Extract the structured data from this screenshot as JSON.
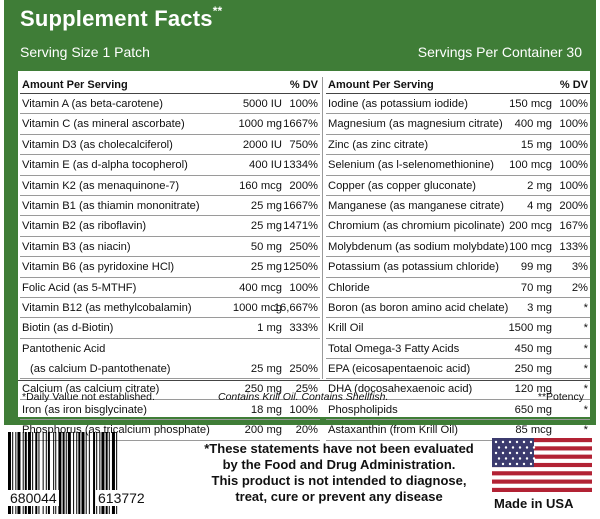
{
  "header": {
    "title": "Supplement Facts",
    "title_mark": "**",
    "serving_size": "Serving Size 1 Patch",
    "servings_per_container": "Servings Per Container 30"
  },
  "table": {
    "col_header_amount": "Amount Per Serving",
    "col_header_dv": "% DV",
    "left": [
      {
        "name": "Vitamin A (as beta-carotene)",
        "amount": "5000 IU",
        "dv": "100%"
      },
      {
        "name": "Vitamin C (as mineral ascorbate)",
        "amount": "1000 mg",
        "dv": "1667%"
      },
      {
        "name": "Vitamin D3 (as cholecalciferol)",
        "amount": "2000 IU",
        "dv": "750%"
      },
      {
        "name": "Vitamin E (as d-alpha tocopherol)",
        "amount": "400 IU",
        "dv": "1334%"
      },
      {
        "name": "Vitamin K2 (as menaquinone-7)",
        "amount": "160 mcg",
        "dv": "200%"
      },
      {
        "name": "Vitamin B1 (as thiamin mononitrate)",
        "amount": "25 mg",
        "dv": "1667%"
      },
      {
        "name": "Vitamin B2 (as riboflavin)",
        "amount": "25 mg",
        "dv": "1471%"
      },
      {
        "name": "Vitamin B3 (as niacin)",
        "amount": "50 mg",
        "dv": "250%"
      },
      {
        "name": "Vitamin B6 (as pyridoxine HCl)",
        "amount": "25 mg",
        "dv": "1250%"
      },
      {
        "name": "Folic Acid (as 5-MTHF)",
        "amount": "400 mcg",
        "dv": "100%"
      },
      {
        "name": "Vitamin B12 (as methylcobalamin)",
        "amount": "1000 mcg",
        "dv": "16,667%"
      },
      {
        "name": "Biotin (as d-Biotin)",
        "amount": "1 mg",
        "dv": "333%"
      },
      {
        "name": "Pantothenic Acid",
        "amount": "",
        "dv": ""
      },
      {
        "name": "(as calcium D-pantothenate)",
        "amount": "25 mg",
        "dv": "250%"
      },
      {
        "name": "Calcium (as calcium citrate)",
        "amount": "250 mg",
        "dv": "25%"
      },
      {
        "name": "Iron (as iron bisglycinate)",
        "amount": "18 mg",
        "dv": "100%"
      },
      {
        "name": "Phosphorus (as tricalcium phosphate)",
        "amount": "200 mg",
        "dv": "20%"
      }
    ],
    "right": [
      {
        "name": "Iodine (as potassium iodide)",
        "amount": "150 mcg",
        "dv": "100%"
      },
      {
        "name": "Magnesium (as magnesium citrate)",
        "amount": "400 mg",
        "dv": "100%"
      },
      {
        "name": "Zinc (as zinc citrate)",
        "amount": "15 mg",
        "dv": "100%"
      },
      {
        "name": "Selenium (as l-selenomethionine)",
        "amount": "100 mcg",
        "dv": "100%"
      },
      {
        "name": "Copper (as copper gluconate)",
        "amount": "2 mg",
        "dv": "100%"
      },
      {
        "name": "Manganese (as manganese citrate)",
        "amount": "4 mg",
        "dv": "200%"
      },
      {
        "name": "Chromium (as chromium picolinate)",
        "amount": "200 mcg",
        "dv": "167%"
      },
      {
        "name": "Molybdenum (as sodium molybdate)",
        "amount": "100 mcg",
        "dv": "133%"
      },
      {
        "name": "Potassium (as potassium chloride)",
        "amount": "99 mg",
        "dv": "3%"
      },
      {
        "name": "Chloride",
        "amount": "70 mg",
        "dv": "2%"
      },
      {
        "name": "Boron (as boron amino acid chelate)",
        "amount": "3 mg",
        "dv": "*"
      },
      {
        "name": "Krill Oil",
        "amount": "1500 mg",
        "dv": "*"
      },
      {
        "name": "Total Omega-3 Fatty Acids",
        "amount": "450 mg",
        "dv": "*"
      },
      {
        "name": "EPA (eicosapentaenoic acid)",
        "amount": "250 mg",
        "dv": "*"
      },
      {
        "name": "DHA (docosahexaenoic acid)",
        "amount": "120 mg",
        "dv": "*"
      },
      {
        "name": "Phospholipids",
        "amount": "650 mg",
        "dv": "*"
      },
      {
        "name": "Astaxanthin (from Krill Oil)",
        "amount": "85 mcg",
        "dv": "*"
      }
    ]
  },
  "footnotes": {
    "daily_value": "*Daily Value not established.",
    "allergen": "Contains Krill Oil. Contains Shellfish.",
    "potency": "**Potency"
  },
  "barcode": {
    "left_digits": "680044",
    "right_digits": "613772"
  },
  "disclaimer": {
    "line1": "*These statements have not been evaluated",
    "line2": "by the Food and Drug Administration.",
    "line3": "This product is not intended to diagnose,",
    "line4": "treat, cure or prevent any disease"
  },
  "origin": {
    "label": "Made in USA",
    "flag_icon": "us-flag-icon"
  },
  "colors": {
    "header_green": "#3f7d37",
    "flag_red": "#b22234",
    "flag_blue": "#3c3b6e"
  }
}
